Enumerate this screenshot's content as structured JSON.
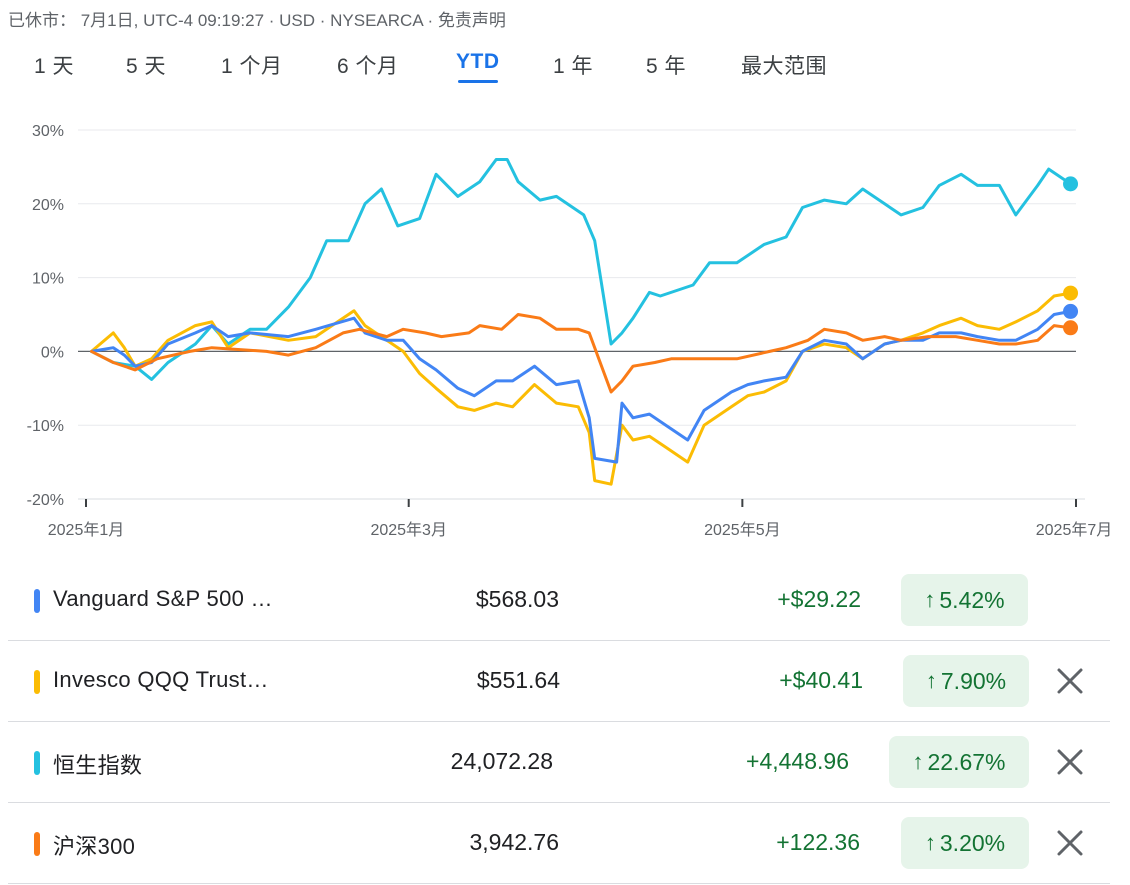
{
  "status_line": "已休市： 7月1日, UTC-4 09:19:27 · USD · NYSEARCA · 免责声明",
  "range_tabs": [
    {
      "label": "1 天",
      "active": false
    },
    {
      "label": "5 天",
      "active": false
    },
    {
      "label": "1 个月",
      "active": false
    },
    {
      "label": "6 个月",
      "active": false
    },
    {
      "label": "YTD",
      "active": true
    },
    {
      "label": "1 年",
      "active": false
    },
    {
      "label": "5 年",
      "active": false
    },
    {
      "label": "最大范围",
      "active": false
    }
  ],
  "colors": {
    "blue": "#4285f4",
    "yellow": "#fbbc04",
    "teal": "#24c1e0",
    "orange": "#fa7b17",
    "accent": "#1a73e8",
    "gain_text": "#137333",
    "gain_bg": "#e6f4ea"
  },
  "chart_data": {
    "type": "line",
    "y_unit": "%",
    "ylim": [
      -20,
      30
    ],
    "y_ticks": [
      {
        "value": 30,
        "label": "30%"
      },
      {
        "value": 20,
        "label": "20%"
      },
      {
        "value": 10,
        "label": "10%"
      },
      {
        "value": 0,
        "label": "0%"
      },
      {
        "value": -10,
        "label": "-10%"
      },
      {
        "value": -20,
        "label": "-20%"
      }
    ],
    "x_range": [
      "2025-01-02",
      "2025-07-01"
    ],
    "x_ticks": [
      {
        "date": "2025-01-01",
        "label": "2025年1月"
      },
      {
        "date": "2025-03-01",
        "label": "2025年3月"
      },
      {
        "date": "2025-05-01",
        "label": "2025年5月"
      },
      {
        "date": "2025-07-01",
        "label": "2025年7月"
      }
    ],
    "grid": true,
    "series": [
      {
        "name": "恒生指数",
        "color": "#24c1e0",
        "points": [
          [
            "2025-01-02",
            0
          ],
          [
            "2025-01-06",
            -1.5
          ],
          [
            "2025-01-10",
            -2
          ],
          [
            "2025-01-13",
            -3.8
          ],
          [
            "2025-01-16",
            -1.5
          ],
          [
            "2025-01-21",
            1
          ],
          [
            "2025-01-24",
            3.5
          ],
          [
            "2025-01-27",
            1
          ],
          [
            "2025-01-31",
            3
          ],
          [
            "2025-02-03",
            3
          ],
          [
            "2025-02-07",
            6
          ],
          [
            "2025-02-11",
            10
          ],
          [
            "2025-02-14",
            15
          ],
          [
            "2025-02-18",
            15
          ],
          [
            "2025-02-21",
            20
          ],
          [
            "2025-02-24",
            22
          ],
          [
            "2025-02-27",
            17
          ],
          [
            "2025-03-03",
            18
          ],
          [
            "2025-03-06",
            24
          ],
          [
            "2025-03-10",
            21
          ],
          [
            "2025-03-14",
            23
          ],
          [
            "2025-03-17",
            26
          ],
          [
            "2025-03-19",
            26
          ],
          [
            "2025-03-21",
            23
          ],
          [
            "2025-03-25",
            20.5
          ],
          [
            "2025-03-28",
            21
          ],
          [
            "2025-04-02",
            18.5
          ],
          [
            "2025-04-04",
            15
          ],
          [
            "2025-04-07",
            1
          ],
          [
            "2025-04-09",
            2.5
          ],
          [
            "2025-04-11",
            4.5
          ],
          [
            "2025-04-14",
            8
          ],
          [
            "2025-04-16",
            7.5
          ],
          [
            "2025-04-22",
            9
          ],
          [
            "2025-04-25",
            12
          ],
          [
            "2025-04-30",
            12
          ],
          [
            "2025-05-05",
            14.5
          ],
          [
            "2025-05-09",
            15.5
          ],
          [
            "2025-05-12",
            19.5
          ],
          [
            "2025-05-16",
            20.5
          ],
          [
            "2025-05-20",
            20
          ],
          [
            "2025-05-23",
            22
          ],
          [
            "2025-05-27",
            20
          ],
          [
            "2025-05-30",
            18.5
          ],
          [
            "2025-06-03",
            19.5
          ],
          [
            "2025-06-06",
            22.5
          ],
          [
            "2025-06-10",
            24
          ],
          [
            "2025-06-13",
            22.5
          ],
          [
            "2025-06-17",
            22.5
          ],
          [
            "2025-06-20",
            18.5
          ],
          [
            "2025-06-24",
            22.5
          ],
          [
            "2025-06-26",
            24.7
          ],
          [
            "2025-06-30",
            22.7
          ]
        ]
      },
      {
        "name": "Invesco QQQ Trust…",
        "color": "#fbbc04",
        "points": [
          [
            "2025-01-02",
            0
          ],
          [
            "2025-01-06",
            2.5
          ],
          [
            "2025-01-08",
            0.5
          ],
          [
            "2025-01-10",
            -2
          ],
          [
            "2025-01-13",
            -1
          ],
          [
            "2025-01-16",
            1.5
          ],
          [
            "2025-01-21",
            3.5
          ],
          [
            "2025-01-24",
            4
          ],
          [
            "2025-01-27",
            0.5
          ],
          [
            "2025-01-31",
            2.5
          ],
          [
            "2025-02-07",
            1.5
          ],
          [
            "2025-02-12",
            2
          ],
          [
            "2025-02-19",
            5.5
          ],
          [
            "2025-02-21",
            3.5
          ],
          [
            "2025-02-25",
            1.5
          ],
          [
            "2025-02-28",
            0
          ],
          [
            "2025-03-03",
            -3
          ],
          [
            "2025-03-06",
            -5
          ],
          [
            "2025-03-10",
            -7.5
          ],
          [
            "2025-03-13",
            -8
          ],
          [
            "2025-03-17",
            -7
          ],
          [
            "2025-03-20",
            -7.5
          ],
          [
            "2025-03-24",
            -4.5
          ],
          [
            "2025-03-28",
            -7
          ],
          [
            "2025-04-01",
            -7.5
          ],
          [
            "2025-04-03",
            -11
          ],
          [
            "2025-04-04",
            -17.5
          ],
          [
            "2025-04-07",
            -18
          ],
          [
            "2025-04-09",
            -10
          ],
          [
            "2025-04-11",
            -12
          ],
          [
            "2025-04-14",
            -11.5
          ],
          [
            "2025-04-17",
            -13
          ],
          [
            "2025-04-21",
            -15
          ],
          [
            "2025-04-24",
            -10
          ],
          [
            "2025-04-29",
            -7.5
          ],
          [
            "2025-05-02",
            -6
          ],
          [
            "2025-05-05",
            -5.5
          ],
          [
            "2025-05-09",
            -4
          ],
          [
            "2025-05-12",
            0
          ],
          [
            "2025-05-16",
            1
          ],
          [
            "2025-05-20",
            0.5
          ],
          [
            "2025-05-23",
            -1
          ],
          [
            "2025-05-27",
            1
          ],
          [
            "2025-05-30",
            1.5
          ],
          [
            "2025-06-03",
            2.5
          ],
          [
            "2025-06-06",
            3.5
          ],
          [
            "2025-06-10",
            4.5
          ],
          [
            "2025-06-13",
            3.5
          ],
          [
            "2025-06-17",
            3
          ],
          [
            "2025-06-20",
            4
          ],
          [
            "2025-06-24",
            5.5
          ],
          [
            "2025-06-27",
            7.5
          ],
          [
            "2025-06-30",
            7.9
          ]
        ]
      },
      {
        "name": "Vanguard S&P 500 …",
        "color": "#4285f4",
        "points": [
          [
            "2025-01-02",
            0
          ],
          [
            "2025-01-06",
            0.5
          ],
          [
            "2025-01-08",
            -0.5
          ],
          [
            "2025-01-10",
            -2
          ],
          [
            "2025-01-13",
            -1.5
          ],
          [
            "2025-01-16",
            1
          ],
          [
            "2025-01-21",
            2.5
          ],
          [
            "2025-01-24",
            3.5
          ],
          [
            "2025-01-27",
            2
          ],
          [
            "2025-01-31",
            2.5
          ],
          [
            "2025-02-07",
            2
          ],
          [
            "2025-02-12",
            3
          ],
          [
            "2025-02-19",
            4.5
          ],
          [
            "2025-02-21",
            2.5
          ],
          [
            "2025-02-25",
            1.5
          ],
          [
            "2025-02-28",
            1.5
          ],
          [
            "2025-03-03",
            -1
          ],
          [
            "2025-03-06",
            -2.5
          ],
          [
            "2025-03-10",
            -5
          ],
          [
            "2025-03-13",
            -6
          ],
          [
            "2025-03-17",
            -4
          ],
          [
            "2025-03-20",
            -4
          ],
          [
            "2025-03-24",
            -2
          ],
          [
            "2025-03-28",
            -4.5
          ],
          [
            "2025-04-01",
            -4
          ],
          [
            "2025-04-03",
            -9
          ],
          [
            "2025-04-04",
            -14.5
          ],
          [
            "2025-04-08",
            -15
          ],
          [
            "2025-04-09",
            -7
          ],
          [
            "2025-04-11",
            -9
          ],
          [
            "2025-04-14",
            -8.5
          ],
          [
            "2025-04-17",
            -10
          ],
          [
            "2025-04-21",
            -12
          ],
          [
            "2025-04-24",
            -8
          ],
          [
            "2025-04-29",
            -5.5
          ],
          [
            "2025-05-02",
            -4.5
          ],
          [
            "2025-05-05",
            -4
          ],
          [
            "2025-05-09",
            -3.5
          ],
          [
            "2025-05-12",
            0
          ],
          [
            "2025-05-16",
            1.5
          ],
          [
            "2025-05-20",
            1
          ],
          [
            "2025-05-23",
            -1
          ],
          [
            "2025-05-27",
            1
          ],
          [
            "2025-05-30",
            1.5
          ],
          [
            "2025-06-03",
            1.5
          ],
          [
            "2025-06-06",
            2.5
          ],
          [
            "2025-06-10",
            2.5
          ],
          [
            "2025-06-13",
            2
          ],
          [
            "2025-06-17",
            1.5
          ],
          [
            "2025-06-20",
            1.5
          ],
          [
            "2025-06-24",
            3
          ],
          [
            "2025-06-27",
            5
          ],
          [
            "2025-06-30",
            5.42
          ]
        ]
      },
      {
        "name": "沪深300",
        "color": "#fa7b17",
        "points": [
          [
            "2025-01-02",
            0
          ],
          [
            "2025-01-06",
            -1.5
          ],
          [
            "2025-01-10",
            -2.5
          ],
          [
            "2025-01-14",
            -1
          ],
          [
            "2025-01-20",
            0
          ],
          [
            "2025-01-24",
            0.5
          ],
          [
            "2025-02-03",
            0
          ],
          [
            "2025-02-07",
            -0.5
          ],
          [
            "2025-02-12",
            0.5
          ],
          [
            "2025-02-17",
            2.5
          ],
          [
            "2025-02-20",
            3
          ],
          [
            "2025-02-25",
            2
          ],
          [
            "2025-02-28",
            3
          ],
          [
            "2025-03-04",
            2.5
          ],
          [
            "2025-03-07",
            2
          ],
          [
            "2025-03-12",
            2.5
          ],
          [
            "2025-03-14",
            3.5
          ],
          [
            "2025-03-18",
            3
          ],
          [
            "2025-03-21",
            5
          ],
          [
            "2025-03-25",
            4.5
          ],
          [
            "2025-03-28",
            3
          ],
          [
            "2025-04-01",
            3
          ],
          [
            "2025-04-03",
            2.5
          ],
          [
            "2025-04-07",
            -5.5
          ],
          [
            "2025-04-09",
            -4
          ],
          [
            "2025-04-11",
            -2
          ],
          [
            "2025-04-15",
            -1.5
          ],
          [
            "2025-04-18",
            -1
          ],
          [
            "2025-04-25",
            -1
          ],
          [
            "2025-04-30",
            -1
          ],
          [
            "2025-05-06",
            0
          ],
          [
            "2025-05-09",
            0.5
          ],
          [
            "2025-05-13",
            1.5
          ],
          [
            "2025-05-16",
            3
          ],
          [
            "2025-05-20",
            2.5
          ],
          [
            "2025-05-23",
            1.5
          ],
          [
            "2025-05-27",
            2
          ],
          [
            "2025-05-30",
            1.5
          ],
          [
            "2025-06-04",
            2
          ],
          [
            "2025-06-09",
            2
          ],
          [
            "2025-06-13",
            1.5
          ],
          [
            "2025-06-17",
            1
          ],
          [
            "2025-06-20",
            1
          ],
          [
            "2025-06-24",
            1.5
          ],
          [
            "2025-06-27",
            3.5
          ],
          [
            "2025-06-30",
            3.2
          ]
        ]
      }
    ]
  },
  "rows": [
    {
      "name": "Vanguard S&P 500 …",
      "price": "$568.03",
      "change": "+$29.22",
      "pct": "5.42%",
      "color": "#4285f4",
      "removable": false
    },
    {
      "name": "Invesco QQQ Trust…",
      "price": "$551.64",
      "change": "+$40.41",
      "pct": "7.90%",
      "color": "#fbbc04",
      "removable": true
    },
    {
      "name": "恒生指数",
      "price": "24,072.28",
      "change": "+4,448.96",
      "pct": "22.67%",
      "color": "#24c1e0",
      "removable": true
    },
    {
      "name": "沪深300",
      "price": "3,942.76",
      "change": "+122.36",
      "pct": "3.20%",
      "color": "#fa7b17",
      "removable": true
    }
  ]
}
